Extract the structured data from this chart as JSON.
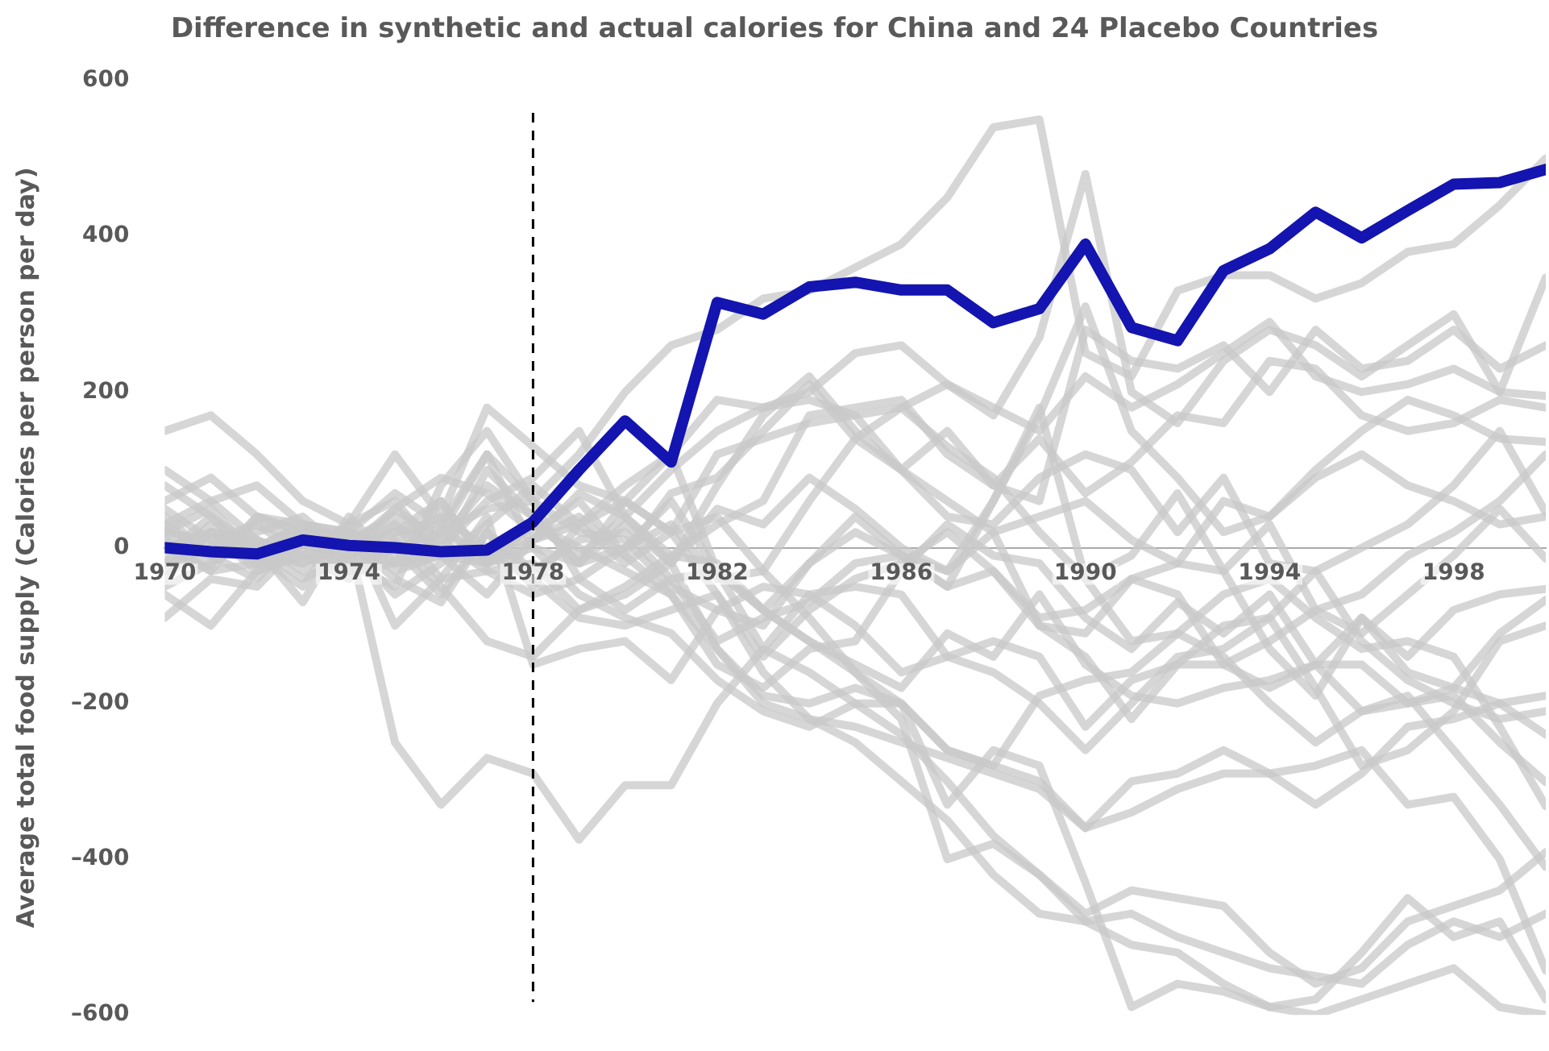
{
  "chart_data": {
    "type": "line",
    "title": "Difference in synthetic and actual calories for China and 24 Placebo Countries",
    "ylabel": "Average total food supply (Calories per person per day)",
    "x": [
      1970,
      1971,
      1972,
      1973,
      1974,
      1975,
      1976,
      1977,
      1978,
      1979,
      1980,
      1981,
      1982,
      1983,
      1984,
      1985,
      1986,
      1987,
      1988,
      1989,
      1990,
      1991,
      1992,
      1993,
      1994,
      1995,
      1996,
      1997,
      1998,
      1999,
      2000
    ],
    "xlim": [
      1970,
      2000
    ],
    "xticks": [
      1970,
      1974,
      1978,
      1982,
      1986,
      1990,
      1994,
      1998
    ],
    "ylim": [
      -600,
      600
    ],
    "yticks": [
      {
        "value": -600,
        "label": "–600"
      },
      {
        "value": -400,
        "label": "–400"
      },
      {
        "value": -200,
        "label": "–200"
      },
      0,
      200,
      400,
      600
    ],
    "grid": false,
    "legend": false,
    "marker": "none",
    "line_style": "solid",
    "ref_lines": [
      {
        "axis": "x",
        "value": 1978,
        "color": "#000000",
        "line_style": "dashed"
      }
    ],
    "series": [
      {
        "color": "#c8c8c8",
        "values": [
          20,
          10,
          -20,
          30,
          10,
          40,
          20,
          50,
          60,
          120,
          200,
          260,
          280,
          320,
          330,
          360,
          390,
          450,
          540,
          550,
          250,
          220,
          330,
          350,
          350,
          320,
          340,
          380,
          390,
          440,
          500
        ]
      },
      {
        "color": "#c8c8c8",
        "values": [
          -30,
          20,
          10,
          -10,
          0,
          20,
          60,
          -20,
          30,
          -10,
          40,
          100,
          150,
          180,
          200,
          250,
          260,
          210,
          170,
          270,
          480,
          200,
          160,
          240,
          280,
          260,
          220,
          260,
          300,
          200,
          347
        ]
      },
      {
        "color": "#c8c8c8",
        "values": [
          150,
          170,
          120,
          60,
          30,
          120,
          40,
          180,
          130,
          80,
          60,
          120,
          190,
          180,
          190,
          170,
          100,
          150,
          80,
          60,
          280,
          240,
          230,
          260,
          200,
          280,
          230,
          240,
          280,
          230,
          260
        ]
      },
      {
        "color": "#c8c8c8",
        "values": [
          60,
          90,
          40,
          20,
          0,
          50,
          10,
          80,
          40,
          -20,
          60,
          20,
          120,
          140,
          160,
          170,
          180,
          210,
          180,
          150,
          220,
          180,
          210,
          250,
          290,
          220,
          200,
          210,
          230,
          200,
          195
        ]
      },
      {
        "color": "#c8c8c8",
        "values": [
          -20,
          30,
          0,
          -40,
          -10,
          30,
          0,
          60,
          90,
          150,
          40,
          -10,
          30,
          60,
          170,
          180,
          190,
          120,
          80,
          140,
          70,
          110,
          170,
          160,
          240,
          230,
          170,
          150,
          160,
          190,
          180
        ]
      },
      {
        "color": "#c8c8c8",
        "values": [
          10,
          -30,
          40,
          30,
          20,
          70,
          30,
          120,
          60,
          20,
          10,
          -50,
          -80,
          -100,
          -20,
          20,
          -10,
          -30,
          60,
          170,
          310,
          150,
          90,
          20,
          40,
          100,
          150,
          190,
          170,
          140,
          136
        ]
      },
      {
        "color": "#c8c8c8",
        "values": [
          -90,
          -40,
          -50,
          10,
          -30,
          -20,
          -10,
          -60,
          10,
          40,
          -10,
          70,
          90,
          150,
          210,
          140,
          100,
          40,
          30,
          90,
          120,
          100,
          20,
          90,
          -20,
          -30,
          0,
          30,
          80,
          150,
          45
        ]
      },
      {
        "color": "#c8c8c8",
        "values": [
          30,
          60,
          10,
          -20,
          20,
          0,
          -60,
          20,
          -50,
          30,
          80,
          120,
          -30,
          -80,
          -20,
          40,
          -10,
          -50,
          60,
          180,
          -40,
          -10,
          70,
          -30,
          30,
          -80,
          -110,
          -60,
          -10,
          50,
          -14
        ]
      },
      {
        "color": "#c8c8c8",
        "values": [
          0,
          -20,
          20,
          40,
          -10,
          20,
          30,
          -20,
          30,
          0,
          -30,
          -60,
          -150,
          -180,
          -130,
          -120,
          -30,
          30,
          -10,
          -20,
          -90,
          -130,
          -70,
          -110,
          -60,
          -150,
          -90,
          -140,
          -80,
          -60,
          -53
        ]
      },
      {
        "color": "#c8c8c8",
        "values": [
          40,
          -10,
          -40,
          20,
          -20,
          -50,
          80,
          150,
          60,
          -40,
          -80,
          -40,
          -120,
          -90,
          -70,
          -20,
          -10,
          -50,
          -30,
          -100,
          -110,
          -40,
          -20,
          -30,
          -130,
          -190,
          -90,
          -160,
          -180,
          -110,
          -67
        ]
      },
      {
        "color": "#c8c8c8",
        "values": [
          -60,
          -100,
          -30,
          -10,
          -40,
          10,
          -50,
          -120,
          -140,
          -80,
          -50,
          -10,
          -20,
          -80,
          -120,
          -150,
          -180,
          -110,
          -140,
          -60,
          -150,
          -190,
          -200,
          -180,
          -170,
          -150,
          -210,
          -200,
          -180,
          -200,
          -240
        ]
      },
      {
        "color": "#c8c8c8",
        "values": [
          80,
          40,
          0,
          -70,
          30,
          -100,
          -40,
          40,
          -150,
          -130,
          -120,
          -170,
          -80,
          -50,
          -60,
          -100,
          -160,
          -140,
          -120,
          -140,
          -230,
          -170,
          -150,
          -150,
          -180,
          -150,
          -150,
          -200,
          -190,
          -250,
          -301
        ]
      },
      {
        "color": "#c8c8c8",
        "values": [
          0,
          20,
          -30,
          0,
          0,
          -20,
          60,
          -20,
          0,
          -60,
          -90,
          -110,
          -170,
          -210,
          -230,
          -200,
          -200,
          -260,
          -280,
          -190,
          -170,
          -160,
          -110,
          -60,
          -40,
          -90,
          -130,
          -120,
          -140,
          -230,
          -332
        ]
      },
      {
        "color": "#c8c8c8",
        "values": [
          10,
          -10,
          0,
          30,
          10,
          -250,
          -330,
          -270,
          -290,
          -375,
          -305,
          -305,
          -200,
          -130,
          -160,
          -200,
          -240,
          -300,
          -370,
          -420,
          -470,
          -440,
          -450,
          -460,
          -520,
          -560,
          -540,
          -480,
          -460,
          -440,
          -391
        ]
      },
      {
        "color": "#c8c8c8",
        "values": [
          -20,
          0,
          30,
          10,
          -30,
          0,
          20,
          -10,
          -40,
          -90,
          -100,
          -80,
          -60,
          -160,
          -220,
          -230,
          -250,
          -270,
          -290,
          -310,
          -360,
          -300,
          -290,
          -260,
          -290,
          -330,
          -290,
          -230,
          -220,
          -200,
          -190
        ]
      },
      {
        "color": "#c8c8c8",
        "values": [
          0,
          -30,
          -20,
          10,
          0,
          30,
          -40,
          -30,
          -20,
          -80,
          -60,
          -20,
          -130,
          -190,
          -200,
          -180,
          -200,
          -260,
          -280,
          -300,
          -360,
          -340,
          -310,
          -290,
          -290,
          -280,
          -260,
          -330,
          -320,
          -400,
          -543
        ]
      },
      {
        "color": "#c8c8c8",
        "values": [
          20,
          0,
          -10,
          -20,
          10,
          -40,
          -70,
          20,
          -30,
          10,
          20,
          -40,
          -30,
          -80,
          -120,
          -160,
          -220,
          -400,
          -380,
          -420,
          -480,
          -470,
          -500,
          -520,
          -540,
          -550,
          -560,
          -510,
          -480,
          -500,
          -470
        ]
      },
      {
        "color": "#c8c8c8",
        "values": [
          -40,
          20,
          0,
          30,
          -20,
          10,
          40,
          0,
          10,
          30,
          -20,
          20,
          40,
          -30,
          -90,
          -160,
          -200,
          -330,
          -260,
          -280,
          -430,
          -590,
          -560,
          -570,
          -590,
          -580,
          -520,
          -450,
          -500,
          -480,
          -580
        ]
      },
      {
        "color": "#c8c8c8",
        "values": [
          50,
          10,
          30,
          -10,
          30,
          60,
          -10,
          100,
          40,
          -20,
          0,
          60,
          -30,
          -130,
          -60,
          -50,
          -60,
          -140,
          -160,
          -200,
          -260,
          -200,
          -140,
          -130,
          -90,
          -180,
          -280,
          -260,
          -210,
          -120,
          -100
        ]
      },
      {
        "color": "#c8c8c8",
        "values": [
          -10,
          40,
          -20,
          20,
          0,
          -60,
          -20,
          30,
          80,
          30,
          60,
          20,
          -60,
          -140,
          -80,
          -40,
          -20,
          20,
          -30,
          -90,
          -80,
          -40,
          -60,
          -150,
          -120,
          -80,
          -60,
          -10,
          20,
          60,
          120
        ]
      },
      {
        "color": "#c8c8c8",
        "values": [
          100,
          60,
          80,
          30,
          20,
          -10,
          20,
          120,
          0,
          -20,
          30,
          -20,
          80,
          170,
          220,
          150,
          100,
          60,
          20,
          -100,
          -140,
          -220,
          -150,
          -100,
          -90,
          -30,
          -120,
          -170,
          -200,
          -220,
          -210
        ]
      },
      {
        "color": "#c8c8c8",
        "values": [
          20,
          50,
          -10,
          -50,
          40,
          -20,
          10,
          -30,
          -60,
          -40,
          0,
          30,
          -40,
          -30,
          60,
          140,
          180,
          130,
          90,
          20,
          -40,
          -120,
          -110,
          -140,
          -200,
          -250,
          -210,
          -190,
          -260,
          -330,
          -410
        ]
      },
      {
        "color": "#c8c8c8",
        "values": [
          -50,
          -20,
          40,
          20,
          -10,
          50,
          90,
          70,
          20,
          60,
          -10,
          -60,
          -130,
          -200,
          -220,
          -250,
          -300,
          -350,
          -420,
          -470,
          -480,
          -510,
          -520,
          -560,
          -590,
          -600,
          -580,
          -560,
          -540,
          -590,
          -600
        ]
      },
      {
        "color": "#c8c8c8",
        "values": [
          30,
          -10,
          10,
          -30,
          20,
          -30,
          -10,
          -20,
          10,
          70,
          40,
          -20,
          50,
          30,
          90,
          50,
          0,
          -30,
          20,
          40,
          60,
          10,
          -20,
          60,
          40,
          90,
          120,
          80,
          60,
          30,
          40
        ]
      },
      {
        "color": "#1414b0",
        "values": [
          0,
          -5,
          -8,
          10,
          3,
          0,
          -5,
          -3,
          33,
          100,
          163,
          110,
          315,
          300,
          335,
          341,
          331,
          331,
          289,
          307,
          390,
          283,
          266,
          356,
          384,
          431,
          398,
          433,
          467,
          469,
          486
        ]
      }
    ]
  }
}
